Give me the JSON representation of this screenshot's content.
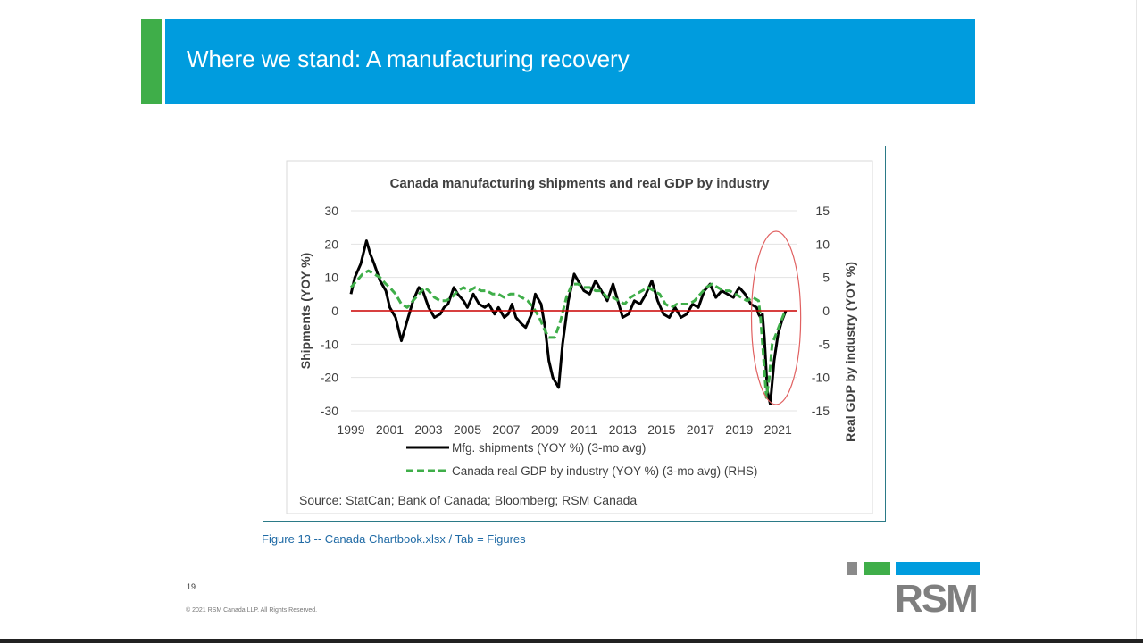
{
  "slide": {
    "title": "Where we stand: A manufacturing recovery",
    "caption": "Figure 13 -- Canada Chartbook.xlsx / Tab = Figures",
    "page_number": "19",
    "copyright": "© 2021 RSM Canada LLP. All Rights Reserved.",
    "logo_text": "RSM",
    "colors": {
      "title_bar": "#009cde",
      "accent_green": "#3fae49",
      "logo_gray": "#7f7f7f"
    }
  },
  "chart_data": {
    "type": "line",
    "title": "Canada manufacturing shipments and real GDP by industry",
    "ylabel": "Shipments (YOY %)",
    "y2label": "Real GDP by industry (YOY %)",
    "source": "Source: StatCan; Bank of Canada; Bloomberg; RSM Canada",
    "xlim": [
      1999,
      2022
    ],
    "ylim": [
      -30,
      30
    ],
    "y2lim": [
      -15,
      15
    ],
    "y_ticks": [
      "30",
      "20",
      "10",
      "0",
      "-10",
      "-20",
      "-30"
    ],
    "y2_ticks": [
      "15",
      "10",
      "5",
      "0",
      "-5",
      "-10",
      "-15"
    ],
    "x_ticks": [
      "1999",
      "2001",
      "2003",
      "2005",
      "2007",
      "2009",
      "2011",
      "2013",
      "2015",
      "2017",
      "2019",
      "2021"
    ],
    "zero_line_color": "#cc0000",
    "highlight": {
      "shape": "ellipse",
      "color": "#e06060",
      "x_range": [
        2020.0,
        2021.8
      ]
    },
    "series": [
      {
        "name": "Mfg. shipments (YOY %) (3-mo avg)",
        "axis": "left",
        "color": "#000000",
        "style": "solid",
        "x": [
          1999.0,
          1999.2,
          1999.5,
          1999.8,
          2000.0,
          2000.2,
          2000.5,
          2000.8,
          2001.0,
          2001.3,
          2001.6,
          2001.9,
          2002.2,
          2002.5,
          2002.7,
          2003.0,
          2003.3,
          2003.6,
          2003.8,
          2004.0,
          2004.3,
          2004.5,
          2004.8,
          2005.0,
          2005.3,
          2005.6,
          2005.9,
          2006.1,
          2006.4,
          2006.6,
          2006.9,
          2007.1,
          2007.3,
          2007.5,
          2007.8,
          2008.0,
          2008.3,
          2008.5,
          2008.8,
          2009.0,
          2009.2,
          2009.4,
          2009.7,
          2009.9,
          2010.2,
          2010.5,
          2010.8,
          2011.0,
          2011.3,
          2011.6,
          2011.9,
          2012.2,
          2012.5,
          2012.7,
          2013.0,
          2013.3,
          2013.6,
          2013.9,
          2014.2,
          2014.5,
          2014.8,
          2015.1,
          2015.4,
          2015.7,
          2016.0,
          2016.3,
          2016.6,
          2016.9,
          2017.2,
          2017.5,
          2017.8,
          2018.1,
          2018.4,
          2018.7,
          2019.0,
          2019.3,
          2019.6,
          2019.9,
          2020.0,
          2020.1,
          2020.2,
          2020.3,
          2020.45,
          2020.6,
          2020.8,
          2021.0,
          2021.2,
          2021.4
        ],
        "values": [
          5,
          10,
          14,
          21,
          17,
          14,
          9,
          6,
          1,
          -2,
          -9,
          -3,
          3,
          7,
          6,
          1,
          -2,
          -1,
          1,
          2,
          7,
          5,
          3,
          1,
          5,
          2,
          1,
          2,
          -1,
          1,
          -2,
          -1,
          2,
          -2,
          -4,
          -5,
          -1,
          5,
          2,
          -5,
          -15,
          -20,
          -23,
          -10,
          3,
          11,
          8,
          6,
          5,
          9,
          6,
          3,
          8,
          4,
          -2,
          -1,
          3,
          2,
          5,
          9,
          3,
          -1,
          -2,
          1,
          -2,
          -1,
          2,
          1,
          6,
          8,
          4,
          6,
          5,
          4,
          7,
          5,
          2,
          1,
          -1,
          -2,
          -1,
          -8,
          -24,
          -28,
          -15,
          -7,
          -3,
          0
        ]
      },
      {
        "name": "Canada real GDP by industry (YOY %) (3-mo avg) (RHS)",
        "axis": "right",
        "color": "#3fae49",
        "style": "dashed",
        "x": [
          1999.0,
          1999.3,
          1999.6,
          1999.9,
          2000.2,
          2000.5,
          2000.8,
          2001.0,
          2001.3,
          2001.6,
          2001.9,
          2002.2,
          2002.5,
          2002.8,
          2003.0,
          2003.3,
          2003.6,
          2003.9,
          2004.2,
          2004.5,
          2004.8,
          2005.1,
          2005.4,
          2005.7,
          2006.0,
          2006.3,
          2006.6,
          2006.9,
          2007.2,
          2007.5,
          2007.8,
          2008.1,
          2008.4,
          2008.7,
          2009.0,
          2009.2,
          2009.5,
          2009.8,
          2010.1,
          2010.4,
          2010.7,
          2011.0,
          2011.3,
          2011.6,
          2011.9,
          2012.2,
          2012.5,
          2012.8,
          2013.1,
          2013.4,
          2013.7,
          2014.0,
          2014.3,
          2014.6,
          2014.9,
          2015.2,
          2015.5,
          2015.8,
          2016.1,
          2016.4,
          2016.7,
          2017.0,
          2017.3,
          2017.6,
          2017.9,
          2018.2,
          2018.5,
          2018.8,
          2019.1,
          2019.4,
          2019.7,
          2020.0,
          2020.1,
          2020.25,
          2020.4,
          2020.55,
          2020.7,
          2020.9,
          2021.1,
          2021.3,
          2021.4
        ],
        "values": [
          3.5,
          4.5,
          5.5,
          6.0,
          5.5,
          5.0,
          4.0,
          3.5,
          2.5,
          1.0,
          0.5,
          1.5,
          2.5,
          3.5,
          3.0,
          2.0,
          1.5,
          1.5,
          2.0,
          3.0,
          3.5,
          3.0,
          3.5,
          3.0,
          3.0,
          2.5,
          2.5,
          2.0,
          2.5,
          2.5,
          2.0,
          1.5,
          0.5,
          -1.0,
          -3.0,
          -4.0,
          -4.0,
          -1.5,
          2.0,
          4.0,
          4.0,
          3.5,
          3.5,
          3.0,
          3.0,
          2.0,
          2.0,
          1.5,
          1.0,
          2.0,
          2.5,
          3.0,
          3.5,
          3.0,
          2.5,
          1.0,
          0.5,
          1.0,
          1.0,
          1.0,
          1.5,
          2.5,
          3.5,
          4.0,
          3.5,
          3.0,
          3.0,
          2.5,
          2.0,
          1.5,
          2.0,
          1.5,
          -1.0,
          -7.0,
          -13.0,
          -10.0,
          -5.0,
          -3.5,
          -2.0,
          -0.5,
          0.0
        ]
      }
    ]
  }
}
